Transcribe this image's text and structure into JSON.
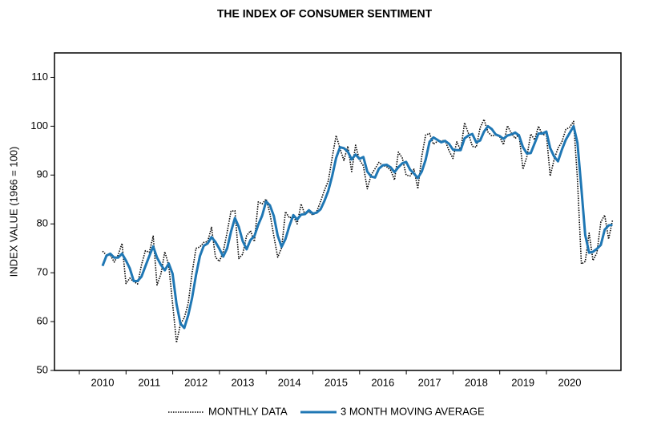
{
  "chart_data": {
    "type": "line",
    "title": "THE INDEX OF CONSUMER SENTIMENT",
    "y_label": "INDEX VALUE (1966 = 100)",
    "categories": [
      "2010",
      null,
      null,
      null,
      null,
      null,
      null,
      null,
      null,
      null,
      null,
      null,
      "2011",
      null,
      null,
      null,
      null,
      null,
      null,
      null,
      null,
      null,
      null,
      null,
      "2012",
      null,
      null,
      null,
      null,
      null,
      null,
      null,
      null,
      null,
      null,
      null,
      "2013",
      null,
      null,
      null,
      null,
      null,
      null,
      null,
      null,
      null,
      null,
      null,
      "2014",
      null,
      null,
      null,
      null,
      null,
      null,
      null,
      null,
      null,
      null,
      null,
      "2015",
      null,
      null,
      null,
      null,
      null,
      null,
      null,
      null,
      null,
      null,
      null,
      "2016",
      null,
      null,
      null,
      null,
      null,
      null,
      null,
      null,
      null,
      null,
      null,
      "2017",
      null,
      null,
      null,
      null,
      null,
      null,
      null,
      null,
      null,
      null,
      null,
      "2018",
      null,
      null,
      null,
      null,
      null,
      null,
      null,
      null,
      null,
      null,
      null,
      "2019",
      null,
      null,
      null,
      null,
      null,
      null,
      null,
      null,
      null,
      null,
      null,
      "2020",
      null,
      null,
      null,
      null,
      null,
      null,
      null,
      null,
      null,
      null,
      null
    ],
    "series": [
      {
        "name": "MONTHLY DATA",
        "color": "#000000",
        "style": "dotted",
        "values": [
          74.4,
          73.6,
          73.6,
          72.2,
          73.6,
          76.0,
          67.8,
          68.9,
          68.2,
          67.7,
          71.6,
          74.5,
          74.2,
          77.5,
          67.5,
          69.8,
          74.3,
          71.5,
          63.7,
          55.7,
          59.5,
          60.8,
          63.7,
          69.9,
          75.0,
          75.3,
          76.2,
          76.4,
          79.3,
          73.2,
          72.3,
          74.3,
          78.3,
          82.6,
          82.7,
          72.9,
          73.8,
          77.6,
          78.6,
          76.4,
          84.5,
          84.1,
          85.1,
          82.1,
          77.5,
          73.2,
          75.1,
          82.5,
          81.2,
          81.6,
          80.0,
          84.1,
          81.9,
          82.5,
          81.8,
          82.5,
          84.6,
          86.9,
          88.8,
          93.6,
          98.1,
          95.4,
          93.0,
          95.9,
          90.7,
          96.1,
          93.1,
          91.9,
          87.2,
          90.0,
          91.3,
          92.6,
          92.0,
          91.7,
          91.0,
          89.0,
          94.7,
          93.5,
          90.0,
          89.8,
          91.2,
          87.2,
          93.8,
          98.2,
          98.5,
          96.3,
          96.9,
          97.0,
          97.1,
          95.0,
          93.4,
          96.8,
          95.1,
          100.7,
          98.5,
          95.9,
          95.7,
          99.7,
          101.4,
          98.8,
          98.0,
          98.2,
          97.9,
          96.2,
          100.1,
          98.6,
          97.5,
          98.3,
          91.2,
          93.8,
          98.4,
          97.2,
          100.0,
          98.2,
          98.4,
          89.8,
          93.2,
          95.5,
          96.8,
          99.3,
          99.8,
          101.0,
          89.1,
          71.8,
          72.3,
          78.1,
          72.5,
          74.1,
          80.4,
          81.8,
          76.9,
          80.7
        ]
      },
      {
        "name": "3 MONTH MOVING AVERAGE",
        "color": "#1f77b4",
        "style": "solid",
        "values": [
          71.4,
          73.5,
          73.9,
          73.1,
          73.1,
          73.9,
          72.5,
          70.9,
          68.3,
          68.3,
          69.2,
          71.3,
          73.4,
          75.4,
          73.1,
          71.6,
          70.5,
          71.9,
          69.8,
          63.6,
          59.6,
          58.7,
          61.3,
          64.8,
          69.5,
          73.4,
          75.5,
          76.0,
          77.3,
          76.3,
          74.9,
          73.3,
          75.0,
          78.4,
          81.2,
          79.4,
          76.5,
          74.8,
          76.7,
          77.5,
          79.8,
          81.7,
          84.6,
          83.8,
          81.6,
          77.6,
          75.3,
          76.9,
          79.6,
          81.8,
          80.9,
          81.9,
          82.0,
          82.8,
          82.1,
          82.3,
          83.0,
          84.7,
          86.8,
          89.8,
          93.5,
          95.7,
          95.5,
          94.8,
          93.2,
          94.2,
          93.3,
          93.7,
          90.7,
          89.7,
          89.5,
          91.3,
          92.0,
          92.1,
          91.6,
          90.6,
          91.6,
          92.4,
          92.7,
          91.1,
          90.3,
          89.4,
          90.7,
          93.1,
          96.8,
          97.7,
          97.2,
          96.7,
          97.0,
          96.4,
          95.2,
          95.1,
          95.1,
          97.5,
          98.1,
          98.4,
          96.7,
          97.1,
          98.9,
          100.0,
          99.4,
          98.3,
          98.0,
          97.4,
          98.1,
          98.3,
          98.7,
          98.1,
          95.7,
          94.4,
          94.5,
          96.5,
          98.5,
          98.5,
          98.9,
          95.5,
          93.8,
          92.8,
          95.2,
          97.2,
          98.6,
          100.0,
          96.6,
          87.3,
          77.7,
          74.1,
          74.3,
          74.9,
          75.7,
          78.8,
          79.7,
          79.8
        ]
      }
    ],
    "ylim": [
      50,
      115
    ],
    "yticks": [
      50,
      60,
      70,
      80,
      90,
      100,
      110
    ],
    "grid": false,
    "legend": "bottom"
  }
}
